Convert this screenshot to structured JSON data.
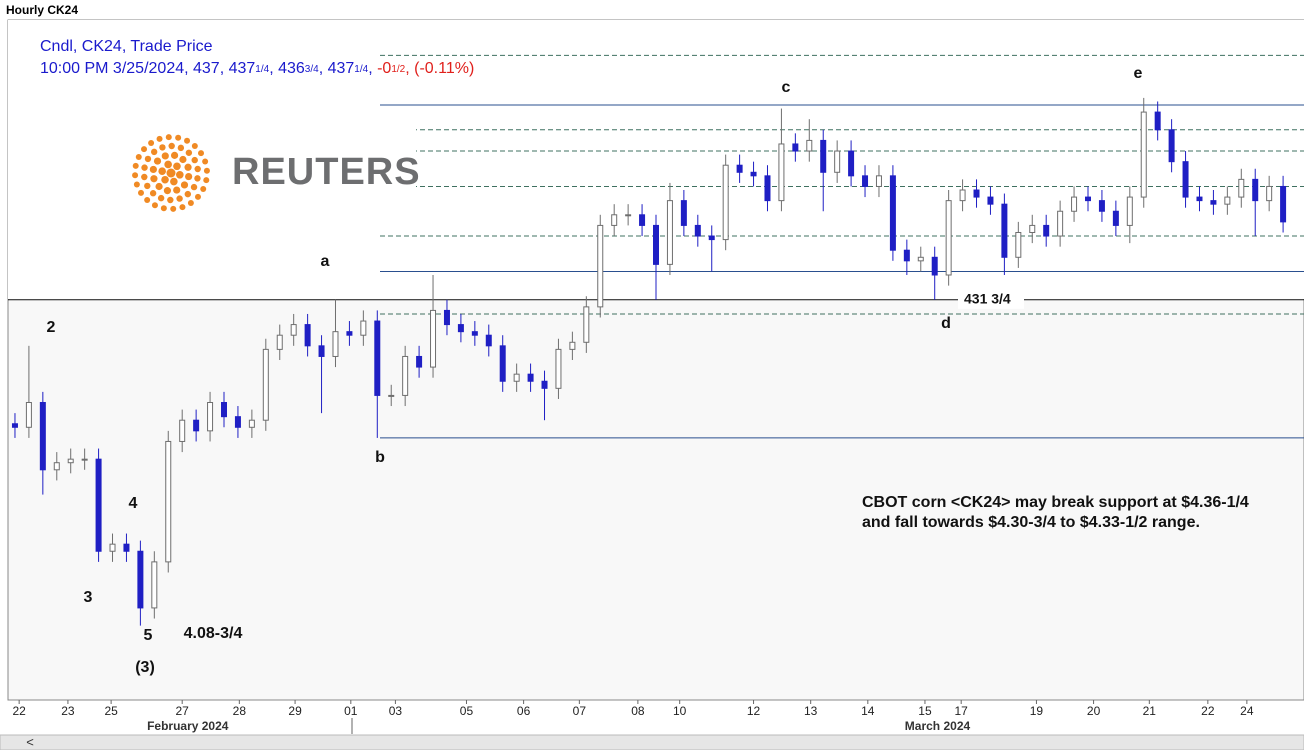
{
  "window_title": "Hourly CK24",
  "scroll_left": "<",
  "chart_data": {
    "type": "candlestick",
    "legend": {
      "line1": "Cndl, CK24, Trade Price",
      "quote": [
        {
          "text": "10:00 PM 3/25/2024, 437, 437"
        },
        {
          "frac": "1/4"
        },
        {
          "text": ", 436"
        },
        {
          "frac": "3/4"
        },
        {
          "text": ", 437"
        },
        {
          "frac": "1/4"
        },
        {
          "text": ", "
        },
        {
          "text": "-0",
          "color": "#e0201c"
        },
        {
          "frac": "1/2",
          "color": "#e0201c"
        },
        {
          "text": ", (-0.11%)",
          "color": "#e0201c"
        }
      ]
    },
    "open": [
      423,
      422.75,
      424.5,
      419.75,
      420.25,
      420.5,
      420.5,
      414,
      414.5,
      414,
      410,
      413.25,
      421.75,
      423.25,
      422.5,
      424.5,
      423.5,
      422.75,
      423.25,
      428.25,
      429.25,
      430,
      428.5,
      427.75,
      429.5,
      429.25,
      430.25,
      425,
      425,
      427.75,
      427,
      431,
      430,
      429.5,
      429.25,
      428.5,
      426,
      426.5,
      426,
      425.5,
      428.25,
      428.75,
      431.25,
      437,
      437.75,
      437.75,
      437,
      434.25,
      438.75,
      437,
      436.25,
      436,
      441.25,
      440.75,
      440.5,
      438.75,
      442.75,
      442.25,
      443,
      440.75,
      442.25,
      440.5,
      439.75,
      440.5,
      435.25,
      434.5,
      434.75,
      433.5,
      438.75,
      439.5,
      439,
      438.5,
      434.75,
      436.5,
      437,
      436.25,
      438,
      439,
      438.75,
      438,
      437,
      439,
      445,
      443.75,
      441.5,
      439,
      438.75,
      438.5,
      439,
      440.25,
      438.75,
      439.75
    ],
    "high": [
      423.75,
      428.5,
      425.25,
      421,
      421.25,
      421.25,
      421.25,
      415.25,
      415.25,
      414.75,
      414,
      422.5,
      424,
      424,
      425.25,
      425.25,
      424.25,
      424,
      429,
      430,
      430.75,
      430.75,
      429.25,
      431.75,
      430.25,
      431,
      431,
      425.75,
      428.5,
      428.5,
      433.5,
      431.75,
      430.75,
      430.25,
      430,
      429.25,
      427.25,
      427.25,
      426.75,
      429,
      429.5,
      432,
      437.75,
      438.5,
      438.5,
      438.5,
      437.75,
      440,
      439.5,
      437.75,
      437,
      442,
      442,
      441.5,
      441.25,
      445.25,
      443.5,
      444.5,
      443.75,
      443,
      443,
      441.25,
      441.25,
      441.25,
      436,
      435.5,
      435.5,
      439.5,
      440.25,
      440.25,
      439.75,
      439.25,
      437.25,
      437.75,
      437.75,
      438.75,
      439.75,
      439.75,
      439.5,
      438.75,
      439.75,
      446,
      445.75,
      444.5,
      442.25,
      439.75,
      439.5,
      439.75,
      441,
      441,
      440.5,
      440.5
    ],
    "low": [
      422,
      422,
      418,
      419,
      419.5,
      419.75,
      413.25,
      413.25,
      413.25,
      408.75,
      409.25,
      412.5,
      421,
      421.75,
      421.75,
      422.75,
      422,
      422,
      422.5,
      427.5,
      428.5,
      427.75,
      423.75,
      427,
      428.5,
      428.5,
      422,
      424.25,
      424.25,
      426.25,
      426.25,
      429.25,
      428.75,
      428.5,
      427.75,
      425.25,
      425.25,
      425.25,
      423.25,
      424.75,
      427.5,
      428,
      430.5,
      436.25,
      437,
      436.25,
      431.75,
      433.5,
      436.25,
      435.5,
      433.75,
      435.25,
      440,
      439.75,
      438,
      438,
      441.5,
      441.5,
      438,
      440,
      439.75,
      439,
      439,
      434.5,
      433.5,
      433.75,
      431.75,
      432.75,
      438,
      438.25,
      437.75,
      433.5,
      434,
      435.75,
      435.5,
      435.5,
      437.25,
      438,
      437.25,
      436.25,
      435.75,
      438.25,
      443,
      440.75,
      438.25,
      438,
      437.75,
      437.75,
      438.25,
      436.25,
      438,
      436.5
    ],
    "close": [
      422.75,
      424.5,
      419.75,
      420.25,
      420.5,
      420.5,
      414,
      414.5,
      414,
      410,
      413.25,
      421.75,
      423.25,
      422.5,
      424.5,
      423.5,
      422.75,
      423.25,
      428.25,
      429.25,
      430,
      428.5,
      427.75,
      429.5,
      429.25,
      430.25,
      425,
      425,
      427.75,
      427,
      431,
      430,
      429.5,
      429.25,
      428.5,
      426,
      426.5,
      426,
      425.5,
      428.25,
      428.75,
      431.25,
      437,
      437.75,
      437.75,
      437,
      434.25,
      438.75,
      437,
      436.25,
      436,
      441.25,
      440.75,
      440.5,
      438.75,
      442.75,
      442.25,
      443,
      440.75,
      442.25,
      440.5,
      439.75,
      440.5,
      435.25,
      434.5,
      434.75,
      433.5,
      438.75,
      439.5,
      439,
      438.5,
      434.75,
      436.5,
      437,
      436.25,
      438,
      439,
      438.75,
      438,
      437,
      439,
      445,
      443.75,
      441.5,
      439,
      438.75,
      438.5,
      439,
      440.25,
      438.75,
      439.75,
      437.25
    ],
    "colors": {
      "up": "#6e6e6e",
      "down": "#1f1fc4"
    },
    "xlim": [
      -0.5,
      92.5
    ],
    "xticks": [
      {
        "value": 0.3,
        "label": "22"
      },
      {
        "value": 3.8,
        "label": "23"
      },
      {
        "value": 6.9,
        "label": "25"
      },
      {
        "value": 12,
        "label": "27"
      },
      {
        "value": 16.1,
        "label": "28"
      },
      {
        "value": 20.1,
        "label": "29"
      },
      {
        "value": 24.1,
        "label": "01"
      },
      {
        "value": 27.3,
        "label": "03"
      },
      {
        "value": 32.4,
        "label": "05"
      },
      {
        "value": 36.5,
        "label": "06"
      },
      {
        "value": 40.5,
        "label": "07"
      },
      {
        "value": 44.7,
        "label": "08"
      },
      {
        "value": 47.7,
        "label": "10"
      },
      {
        "value": 53,
        "label": "12"
      },
      {
        "value": 57.1,
        "label": "13"
      },
      {
        "value": 61.2,
        "label": "14"
      },
      {
        "value": 65.3,
        "label": "15"
      },
      {
        "value": 67.9,
        "label": "17"
      },
      {
        "value": 73.3,
        "label": "19"
      },
      {
        "value": 77.4,
        "label": "20"
      },
      {
        "value": 81.4,
        "label": "21"
      },
      {
        "value": 85.6,
        "label": "22"
      },
      {
        "value": 88.4,
        "label": "24"
      }
    ],
    "months": [
      {
        "value": 12.4,
        "label": "February 2024"
      },
      {
        "value": 66.2,
        "label": "March 2024"
      }
    ],
    "ylim": [
      403.5,
      451.5
    ],
    "levels": [
      {
        "value": 449,
        "style": "dashed"
      },
      {
        "value": 445.5,
        "style": "solid"
      },
      {
        "value": 443.75,
        "style": "dashed"
      },
      {
        "value": 442.25,
        "style": "dashed"
      },
      {
        "value": 439.75,
        "style": "dashed"
      },
      {
        "value": 436.25,
        "style": "dashed"
      },
      {
        "value": 433.75,
        "style": "solid"
      },
      {
        "value": 430.75,
        "style": "dashed"
      },
      {
        "value": 422,
        "style": "solid"
      }
    ],
    "support": {
      "value": 431.75,
      "label": "431 3/4"
    },
    "annotations": [
      "a",
      "b",
      "c",
      "d",
      "e",
      "2",
      "3",
      "4",
      "5",
      "(3)",
      "4.08-3/4"
    ],
    "note": [
      "CBOT corn <CK24> may break support at $4.36-1/4",
      "and fall towards $4.30-3/4 to $4.33-1/2 range."
    ],
    "logo": "REUTERS"
  }
}
